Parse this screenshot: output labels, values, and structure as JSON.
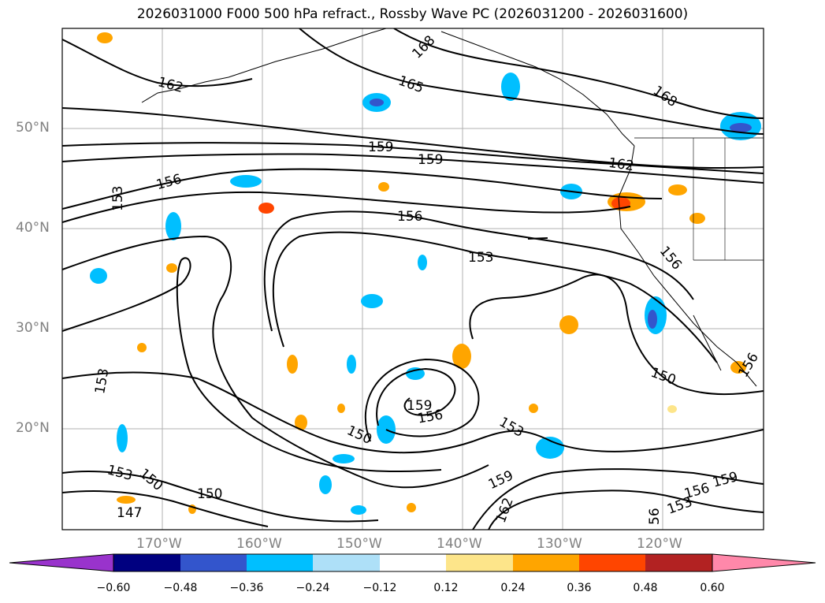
{
  "title": "2026031000 F000 500 hPa refract., Rossby Wave PC (2026031200 - 2026031600)",
  "lat_labels": [
    "50°N",
    "40°N",
    "30°N",
    "20°N"
  ],
  "lon_labels": [
    "170°W",
    "160°W",
    "150°W",
    "140°W",
    "130°W",
    "120°W"
  ],
  "contour_labels": [
    "168",
    "165",
    "162",
    "168",
    "159",
    "159",
    "156",
    "153",
    "162",
    "156",
    "153",
    "156",
    "150",
    "153",
    "159",
    "156",
    "150",
    "153",
    "153",
    "150",
    "150",
    "147",
    "159",
    "162",
    "156",
    "153",
    "159",
    "56",
    "156"
  ],
  "colorbar": {
    "ticks": [
      "−0.60",
      "−0.48",
      "−0.36",
      "−0.24",
      "−0.12",
      "0.12",
      "0.24",
      "0.36",
      "0.48",
      "0.60"
    ],
    "colors": [
      "#9933cc",
      "#000080",
      "#3355cc",
      "#00bfff",
      "#aee0f8",
      "#ffffff",
      "#fde58a",
      "#ffa500",
      "#ff4500",
      "#b22222",
      "#ff88aa"
    ]
  }
}
